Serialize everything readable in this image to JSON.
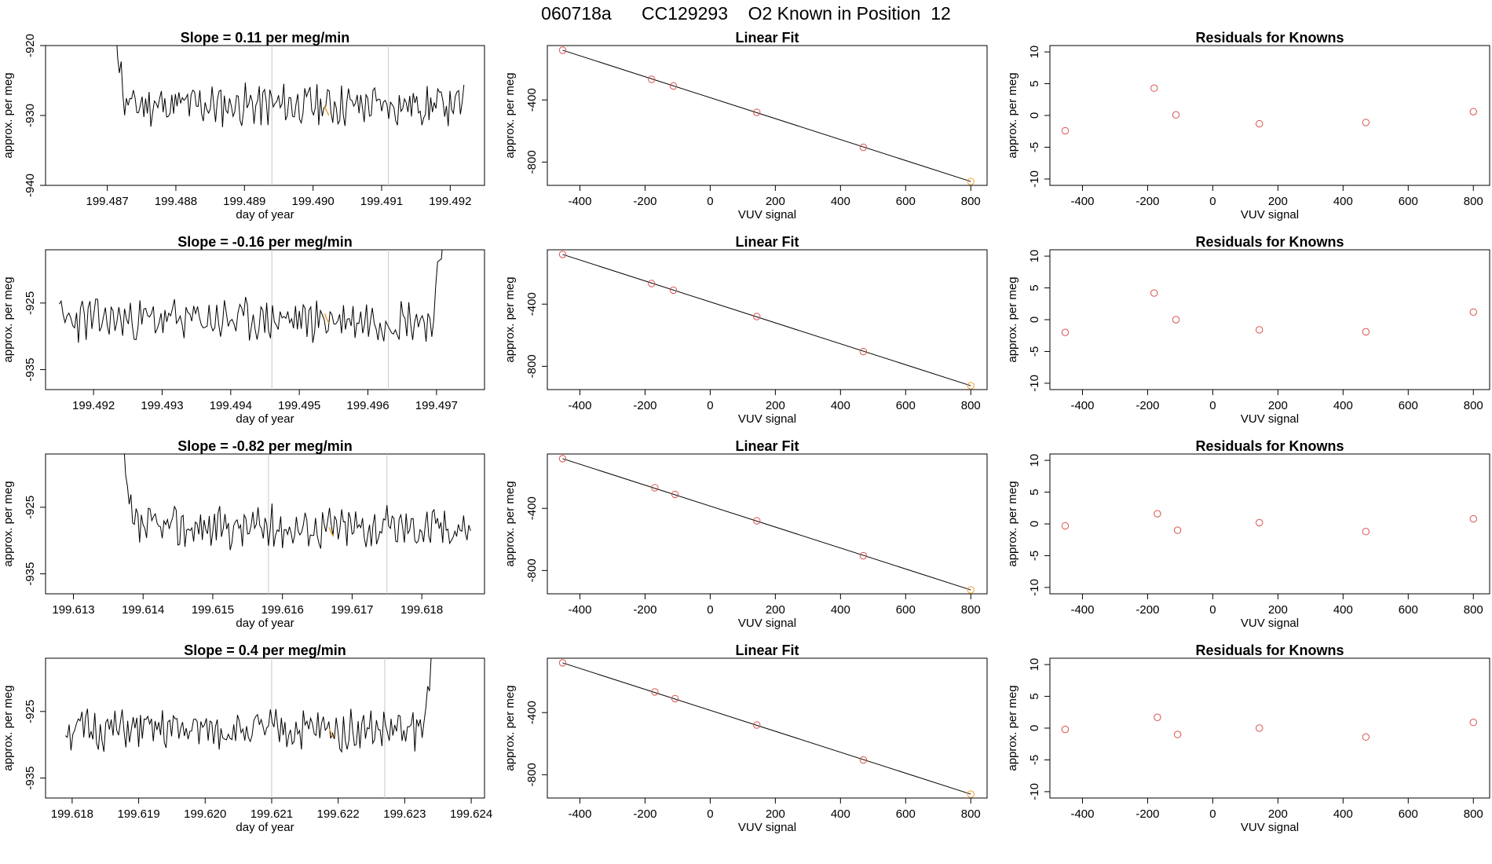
{
  "page_title": "060718a      CC129293    O2 Known in Position  12",
  "chart_data": [
    {
      "type": "line",
      "panel": "time-series-row-1",
      "title": "Slope =  0.11  per meg/min",
      "xlabel": "day of year",
      "ylabel": "approx. per meg",
      "xlim": [
        199.4861,
        199.4925
      ],
      "ylim": [
        -940,
        -920
      ],
      "x_ticks": [
        "199.487",
        "199.488",
        "199.489",
        "199.490",
        "199.491",
        "199.492"
      ],
      "x_tick_values": [
        199.487,
        199.488,
        199.489,
        199.49,
        199.491,
        199.492
      ],
      "y_ticks": [
        "-940",
        "-930",
        "-920"
      ],
      "y_tick_values": [
        -940,
        -930,
        -920
      ],
      "vlines": [
        199.4894,
        199.4911
      ],
      "highlight_point": {
        "x": 199.4902,
        "y": -929.4
      },
      "series": [
        {
          "x_start": 199.4871,
          "x_end": 199.4922,
          "baseline": -928.5,
          "amplitude": 2.5,
          "seed": 11,
          "lead_in": {
            "from": -915,
            "length": 6
          }
        }
      ]
    },
    {
      "type": "scatter",
      "panel": "linear-fit-row-1",
      "title": "Linear Fit",
      "xlabel": "VUV signal",
      "ylabel": "approx. per meg",
      "xlim": [
        -500,
        850
      ],
      "ylim": [
        -950,
        -50
      ],
      "x_ticks": [
        "-400",
        "-200",
        "0",
        "200",
        "400",
        "600",
        "800"
      ],
      "x_tick_values": [
        -400,
        -200,
        0,
        200,
        400,
        600,
        800
      ],
      "y_ticks": [
        "-800",
        "-400"
      ],
      "y_tick_values": [
        -800,
        -400
      ],
      "points": [
        {
          "x": -453,
          "y": -80
        },
        {
          "x": -180,
          "y": -267
        },
        {
          "x": -113,
          "y": -310
        },
        {
          "x": 143,
          "y": -480
        },
        {
          "x": 470,
          "y": -705
        },
        {
          "x": 800,
          "y": -925
        }
      ],
      "fit_line": [
        [
          -453,
          -80
        ],
        [
          800,
          -925
        ]
      ]
    },
    {
      "type": "scatter",
      "panel": "residuals-row-1",
      "title": "Residuals for Knowns",
      "xlabel": "VUV signal",
      "ylabel": "approx. per meg",
      "xlim": [
        -500,
        850
      ],
      "ylim": [
        -11,
        11
      ],
      "x_ticks": [
        "-400",
        "-200",
        "0",
        "200",
        "400",
        "600",
        "800"
      ],
      "x_tick_values": [
        -400,
        -200,
        0,
        200,
        400,
        600,
        800
      ],
      "y_ticks": [
        "-10",
        "-5",
        "0",
        "5",
        "10"
      ],
      "y_tick_values": [
        -10,
        -5,
        0,
        5,
        10
      ],
      "points": [
        {
          "x": -453,
          "y": -2.4
        },
        {
          "x": -180,
          "y": 4.3
        },
        {
          "x": -113,
          "y": 0.1
        },
        {
          "x": 143,
          "y": -1.3
        },
        {
          "x": 470,
          "y": -1.1
        },
        {
          "x": 800,
          "y": 0.6
        }
      ]
    },
    {
      "type": "line",
      "panel": "time-series-row-2",
      "title": "Slope =  -0.16  per meg/min",
      "xlabel": "day of year",
      "ylabel": "approx. per meg",
      "xlim": [
        199.4913,
        199.4977
      ],
      "ylim": [
        -938,
        -917
      ],
      "x_ticks": [
        "199.492",
        "199.493",
        "199.494",
        "199.495",
        "199.496",
        "199.497"
      ],
      "x_tick_values": [
        199.492,
        199.493,
        199.494,
        199.495,
        199.496,
        199.497
      ],
      "y_ticks": [
        "-935",
        "-925"
      ],
      "y_tick_values": [
        -935,
        -925
      ],
      "vlines": [
        199.4946,
        199.4963
      ],
      "highlight_point": {
        "x": 199.4954,
        "y": -927.4
      },
      "series": [
        {
          "x_start": 199.4915,
          "x_end": 199.4971,
          "baseline": -927.5,
          "amplitude": 2.7,
          "seed": 23,
          "lead_out": {
            "to": -914,
            "length": 5
          }
        }
      ]
    },
    {
      "type": "scatter",
      "panel": "linear-fit-row-2",
      "title": "Linear Fit",
      "xlabel": "VUV signal",
      "ylabel": "approx. per meg",
      "xlim": [
        -500,
        850
      ],
      "ylim": [
        -950,
        -50
      ],
      "x_ticks": [
        "-400",
        "-200",
        "0",
        "200",
        "400",
        "600",
        "800"
      ],
      "x_tick_values": [
        -400,
        -200,
        0,
        200,
        400,
        600,
        800
      ],
      "y_ticks": [
        "-800",
        "-400"
      ],
      "y_tick_values": [
        -800,
        -400
      ],
      "points": [
        {
          "x": -453,
          "y": -80
        },
        {
          "x": -180,
          "y": -267
        },
        {
          "x": -113,
          "y": -310
        },
        {
          "x": 143,
          "y": -480
        },
        {
          "x": 470,
          "y": -705
        },
        {
          "x": 800,
          "y": -925
        }
      ],
      "fit_line": [
        [
          -453,
          -80
        ],
        [
          800,
          -925
        ]
      ]
    },
    {
      "type": "scatter",
      "panel": "residuals-row-2",
      "title": "Residuals for Knowns",
      "xlabel": "VUV signal",
      "ylabel": "approx. per meg",
      "xlim": [
        -500,
        850
      ],
      "ylim": [
        -11,
        11
      ],
      "x_ticks": [
        "-400",
        "-200",
        "0",
        "200",
        "400",
        "600",
        "800"
      ],
      "x_tick_values": [
        -400,
        -200,
        0,
        200,
        400,
        600,
        800
      ],
      "y_ticks": [
        "-10",
        "-5",
        "0",
        "5",
        "10"
      ],
      "y_tick_values": [
        -10,
        -5,
        0,
        5,
        10
      ],
      "points": [
        {
          "x": -453,
          "y": -2.0
        },
        {
          "x": -180,
          "y": 4.2
        },
        {
          "x": -113,
          "y": 0.0
        },
        {
          "x": 143,
          "y": -1.6
        },
        {
          "x": 470,
          "y": -1.9
        },
        {
          "x": 800,
          "y": 1.2
        }
      ]
    },
    {
      "type": "line",
      "panel": "time-series-row-3",
      "title": "Slope =  -0.82  per meg/min",
      "xlabel": "day of year",
      "ylabel": "approx. per meg",
      "xlim": [
        199.6126,
        199.6189
      ],
      "ylim": [
        -938,
        -917
      ],
      "x_ticks": [
        "199.613",
        "199.614",
        "199.615",
        "199.616",
        "199.617",
        "199.618"
      ],
      "x_tick_values": [
        199.613,
        199.614,
        199.615,
        199.616,
        199.617,
        199.618
      ],
      "y_ticks": [
        "-935",
        "-925"
      ],
      "y_tick_values": [
        -935,
        -925
      ],
      "vlines": [
        199.6158,
        199.6175
      ],
      "highlight_point": {
        "x": 199.6167,
        "y": -928.8
      },
      "series": [
        {
          "x_start": 199.6137,
          "x_end": 199.6187,
          "baseline": -928.0,
          "amplitude": 2.7,
          "seed": 37,
          "lead_in": {
            "from": -917.5,
            "length": 6
          }
        }
      ]
    },
    {
      "type": "scatter",
      "panel": "linear-fit-row-3",
      "title": "Linear Fit",
      "xlabel": "VUV signal",
      "ylabel": "approx. per meg",
      "xlim": [
        -500,
        850
      ],
      "ylim": [
        -950,
        -50
      ],
      "x_ticks": [
        "-400",
        "-200",
        "0",
        "200",
        "400",
        "600",
        "800"
      ],
      "x_tick_values": [
        -400,
        -200,
        0,
        200,
        400,
        600,
        800
      ],
      "y_ticks": [
        "-800",
        "-400"
      ],
      "y_tick_values": [
        -800,
        -400
      ],
      "points": [
        {
          "x": -453,
          "y": -80
        },
        {
          "x": -170,
          "y": -267
        },
        {
          "x": -108,
          "y": -310
        },
        {
          "x": 143,
          "y": -480
        },
        {
          "x": 470,
          "y": -705
        },
        {
          "x": 800,
          "y": -925
        }
      ],
      "fit_line": [
        [
          -453,
          -80
        ],
        [
          800,
          -925
        ]
      ]
    },
    {
      "type": "scatter",
      "panel": "residuals-row-3",
      "title": "Residuals for Knowns",
      "xlabel": "VUV signal",
      "ylabel": "approx. per meg",
      "xlim": [
        -500,
        850
      ],
      "ylim": [
        -11,
        11
      ],
      "x_ticks": [
        "-400",
        "-200",
        "0",
        "200",
        "400",
        "600",
        "800"
      ],
      "x_tick_values": [
        -400,
        -200,
        0,
        200,
        400,
        600,
        800
      ],
      "y_ticks": [
        "-10",
        "-5",
        "0",
        "5",
        "10"
      ],
      "y_tick_values": [
        -10,
        -5,
        0,
        5,
        10
      ],
      "points": [
        {
          "x": -453,
          "y": -0.3
        },
        {
          "x": -170,
          "y": 1.6
        },
        {
          "x": -108,
          "y": -1.0
        },
        {
          "x": 143,
          "y": 0.2
        },
        {
          "x": 470,
          "y": -1.2
        },
        {
          "x": 800,
          "y": 0.8
        }
      ]
    },
    {
      "type": "line",
      "panel": "time-series-row-4",
      "title": "Slope =  0.4  per meg/min",
      "xlabel": "day of year",
      "ylabel": "approx. per meg",
      "xlim": [
        199.6176,
        199.6242
      ],
      "ylim": [
        -938,
        -917
      ],
      "x_ticks": [
        "199.618",
        "199.619",
        "199.620",
        "199.621",
        "199.622",
        "199.623",
        "199.624"
      ],
      "x_tick_values": [
        199.618,
        199.619,
        199.62,
        199.621,
        199.622,
        199.623,
        199.624
      ],
      "y_ticks": [
        "-935",
        "-925"
      ],
      "y_tick_values": [
        -935,
        -925
      ],
      "vlines": [
        199.621,
        199.6227
      ],
      "highlight_point": {
        "x": 199.6219,
        "y": -928.4
      },
      "series": [
        {
          "x_start": 199.6179,
          "x_end": 199.6234,
          "baseline": -927.8,
          "amplitude": 2.6,
          "seed": 51,
          "lead_out": {
            "to": -916,
            "length": 4
          }
        }
      ]
    },
    {
      "type": "scatter",
      "panel": "linear-fit-row-4",
      "title": "Linear Fit",
      "xlabel": "VUV signal",
      "ylabel": "approx. per meg",
      "xlim": [
        -500,
        850
      ],
      "ylim": [
        -950,
        -50
      ],
      "x_ticks": [
        "-400",
        "-200",
        "0",
        "200",
        "400",
        "600",
        "800"
      ],
      "x_tick_values": [
        -400,
        -200,
        0,
        200,
        400,
        600,
        800
      ],
      "y_ticks": [
        "-800",
        "-400"
      ],
      "y_tick_values": [
        -800,
        -400
      ],
      "points": [
        {
          "x": -453,
          "y": -80
        },
        {
          "x": -170,
          "y": -267
        },
        {
          "x": -108,
          "y": -310
        },
        {
          "x": 143,
          "y": -480
        },
        {
          "x": 470,
          "y": -705
        },
        {
          "x": 800,
          "y": -925
        }
      ],
      "fit_line": [
        [
          -453,
          -80
        ],
        [
          800,
          -925
        ]
      ]
    },
    {
      "type": "scatter",
      "panel": "residuals-row-4",
      "title": "Residuals for Knowns",
      "xlabel": "VUV signal",
      "ylabel": "approx. per meg",
      "xlim": [
        -500,
        850
      ],
      "ylim": [
        -11,
        11
      ],
      "x_ticks": [
        "-400",
        "-200",
        "0",
        "200",
        "400",
        "600",
        "800"
      ],
      "x_tick_values": [
        -400,
        -200,
        0,
        200,
        400,
        600,
        800
      ],
      "y_ticks": [
        "-10",
        "-5",
        "0",
        "5",
        "10"
      ],
      "y_tick_values": [
        -10,
        -5,
        0,
        5,
        10
      ],
      "points": [
        {
          "x": -453,
          "y": -0.2
        },
        {
          "x": -170,
          "y": 1.7
        },
        {
          "x": -108,
          "y": -1.0
        },
        {
          "x": 143,
          "y": 0.0
        },
        {
          "x": 470,
          "y": -1.4
        },
        {
          "x": 800,
          "y": 0.9
        }
      ]
    }
  ],
  "colors": {
    "line": "#000000",
    "point": "#d9534f",
    "highlight": "#f0a030",
    "vline": "#c8c8c8",
    "axis": "#000000"
  }
}
